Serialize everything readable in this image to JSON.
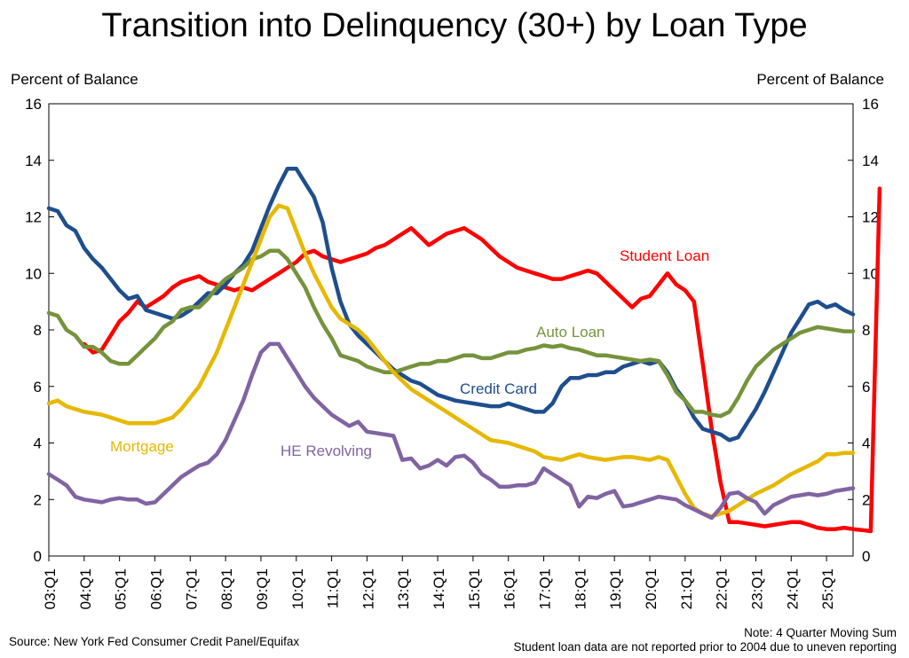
{
  "chart_data": {
    "type": "line",
    "title": "Transition into Delinquency (30+) by Loan Type",
    "ylabel_left": "Percent of Balance",
    "ylabel_right": "Percent of Balance",
    "ylim": [
      0,
      16
    ],
    "yticks": [
      0,
      2,
      4,
      6,
      8,
      10,
      12,
      14,
      16
    ],
    "x_start": "2003Q1",
    "x_ticks": [
      "03:Q1",
      "04:Q1",
      "05:Q1",
      "06:Q1",
      "07:Q1",
      "08:Q1",
      "09:Q1",
      "10:Q1",
      "11:Q1",
      "12:Q1",
      "13:Q1",
      "14:Q1",
      "15:Q1",
      "16:Q1",
      "17:Q1",
      "18:Q1",
      "19:Q1",
      "20:Q1",
      "21:Q1",
      "22:Q1",
      "23:Q1",
      "24:Q1",
      "25:Q1"
    ],
    "series": [
      {
        "name": "Student Loan",
        "color": "#ff0000",
        "start": "2004Q1",
        "values": [
          7.5,
          7.2,
          7.3,
          7.8,
          8.3,
          8.6,
          9.0,
          8.8,
          9.0,
          9.2,
          9.5,
          9.7,
          9.8,
          9.9,
          9.7,
          9.6,
          9.5,
          9.4,
          9.5,
          9.4,
          9.6,
          9.8,
          10.0,
          10.2,
          10.4,
          10.7,
          10.8,
          10.6,
          10.5,
          10.4,
          10.5,
          10.6,
          10.7,
          10.9,
          11.0,
          11.2,
          11.4,
          11.6,
          11.3,
          11.0,
          11.2,
          11.4,
          11.5,
          11.6,
          11.4,
          11.2,
          10.9,
          10.6,
          10.4,
          10.2,
          10.1,
          10.0,
          9.9,
          9.8,
          9.8,
          9.9,
          10.0,
          10.1,
          10.0,
          9.7,
          9.4,
          9.1,
          8.8,
          9.1,
          9.2,
          9.6,
          10.0,
          9.6,
          9.4,
          9.0,
          6.8,
          4.5,
          2.6,
          1.2,
          1.2,
          1.15,
          1.1,
          1.05,
          1.1,
          1.15,
          1.2,
          1.2,
          1.1,
          1.0,
          0.95,
          0.95,
          1.0,
          0.95,
          0.92,
          0.88,
          13.0
        ]
      },
      {
        "name": "Credit Card",
        "color": "#1f4e8c",
        "start": "2003Q1",
        "values": [
          12.3,
          12.2,
          11.7,
          11.5,
          10.9,
          10.5,
          10.2,
          9.8,
          9.4,
          9.1,
          9.2,
          8.7,
          8.6,
          8.5,
          8.4,
          8.5,
          8.7,
          9.0,
          9.3,
          9.3,
          9.6,
          10.0,
          10.3,
          10.8,
          11.6,
          12.4,
          13.1,
          13.7,
          13.7,
          13.2,
          12.7,
          11.8,
          10.2,
          9.0,
          8.2,
          7.8,
          7.5,
          7.2,
          6.9,
          6.6,
          6.4,
          6.2,
          6.1,
          5.9,
          5.7,
          5.6,
          5.5,
          5.45,
          5.4,
          5.35,
          5.3,
          5.3,
          5.4,
          5.3,
          5.2,
          5.1,
          5.1,
          5.4,
          6.0,
          6.3,
          6.3,
          6.4,
          6.4,
          6.5,
          6.5,
          6.7,
          6.8,
          6.9,
          6.8,
          6.9,
          6.5,
          5.9,
          5.5,
          4.9,
          4.5,
          4.4,
          4.3,
          4.1,
          4.2,
          4.7,
          5.2,
          5.8,
          6.5,
          7.2,
          7.9,
          8.4,
          8.9,
          9.0,
          8.8,
          8.9,
          8.7,
          8.55
        ]
      },
      {
        "name": "Auto Loan",
        "color": "#76933c",
        "start": "2003Q1",
        "values": [
          8.6,
          8.5,
          8.0,
          7.8,
          7.4,
          7.4,
          7.2,
          6.9,
          6.8,
          6.8,
          7.1,
          7.4,
          7.7,
          8.1,
          8.3,
          8.7,
          8.8,
          8.8,
          9.1,
          9.5,
          9.8,
          10.0,
          10.2,
          10.5,
          10.6,
          10.8,
          10.8,
          10.5,
          10.0,
          9.5,
          8.8,
          8.2,
          7.7,
          7.1,
          7.0,
          6.9,
          6.7,
          6.6,
          6.5,
          6.5,
          6.6,
          6.7,
          6.8,
          6.8,
          6.9,
          6.9,
          7.0,
          7.1,
          7.1,
          7.0,
          7.0,
          7.1,
          7.2,
          7.2,
          7.3,
          7.35,
          7.45,
          7.4,
          7.45,
          7.35,
          7.3,
          7.2,
          7.1,
          7.1,
          7.05,
          7.0,
          6.95,
          6.9,
          6.95,
          6.9,
          6.4,
          5.8,
          5.5,
          5.1,
          5.1,
          5.0,
          4.95,
          5.1,
          5.6,
          6.2,
          6.7,
          7.0,
          7.3,
          7.5,
          7.7,
          7.9,
          8.0,
          8.1,
          8.05,
          8.0,
          7.95,
          7.95
        ]
      },
      {
        "name": "Mortgage",
        "color": "#e6b800",
        "start": "2003Q1",
        "values": [
          5.4,
          5.5,
          5.3,
          5.2,
          5.1,
          5.05,
          5.0,
          4.9,
          4.8,
          4.7,
          4.7,
          4.7,
          4.7,
          4.8,
          4.9,
          5.2,
          5.6,
          6.0,
          6.6,
          7.2,
          8.0,
          8.8,
          9.6,
          10.4,
          11.2,
          12.0,
          12.4,
          12.3,
          11.5,
          10.7,
          10.0,
          9.4,
          8.8,
          8.4,
          8.2,
          8.0,
          7.7,
          7.3,
          6.9,
          6.5,
          6.2,
          5.9,
          5.7,
          5.5,
          5.3,
          5.1,
          4.9,
          4.7,
          4.5,
          4.3,
          4.1,
          4.05,
          4.0,
          3.9,
          3.8,
          3.7,
          3.5,
          3.45,
          3.4,
          3.5,
          3.6,
          3.5,
          3.45,
          3.4,
          3.45,
          3.5,
          3.5,
          3.45,
          3.4,
          3.5,
          3.4,
          2.8,
          2.2,
          1.7,
          1.5,
          1.4,
          1.5,
          1.6,
          1.8,
          2.0,
          2.2,
          2.35,
          2.5,
          2.7,
          2.9,
          3.05,
          3.2,
          3.35,
          3.6,
          3.6,
          3.65,
          3.65
        ]
      },
      {
        "name": "HE Revolving",
        "color": "#8064a2",
        "start": "2003Q1",
        "values": [
          2.9,
          2.7,
          2.5,
          2.1,
          2.0,
          1.95,
          1.9,
          2.0,
          2.05,
          2.0,
          2.0,
          1.85,
          1.9,
          2.2,
          2.5,
          2.8,
          3.0,
          3.2,
          3.3,
          3.6,
          4.1,
          4.8,
          5.5,
          6.4,
          7.2,
          7.5,
          7.5,
          7.0,
          6.5,
          6.0,
          5.6,
          5.3,
          5.0,
          4.8,
          4.6,
          4.75,
          4.4,
          4.35,
          4.3,
          4.25,
          3.4,
          3.45,
          3.1,
          3.2,
          3.4,
          3.2,
          3.5,
          3.55,
          3.3,
          2.9,
          2.7,
          2.45,
          2.45,
          2.5,
          2.5,
          2.6,
          3.1,
          2.9,
          2.7,
          2.5,
          1.75,
          2.1,
          2.05,
          2.2,
          2.3,
          1.75,
          1.8,
          1.9,
          2.0,
          2.1,
          2.05,
          2.0,
          1.8,
          1.65,
          1.5,
          1.35,
          1.7,
          2.2,
          2.25,
          2.05,
          1.9,
          1.5,
          1.8,
          1.95,
          2.1,
          2.15,
          2.2,
          2.15,
          2.2,
          2.3,
          2.35,
          2.4
        ]
      }
    ],
    "annotations": [
      {
        "text": "Student Loan",
        "series": "Student Loan"
      },
      {
        "text": "Auto Loan",
        "series": "Auto Loan"
      },
      {
        "text": "Credit Card",
        "series": "Credit Card"
      },
      {
        "text": "Mortgage",
        "series": "Mortgage"
      },
      {
        "text": "HE Revolving",
        "series": "HE Revolving"
      }
    ],
    "legend": "inline labels",
    "grid": false
  },
  "footer": {
    "source": "Source: New York Fed Consumer Credit Panel/Equifax",
    "note1": "Note: 4 Quarter Moving Sum",
    "note2": "Student loan data are not reported prior to 2004 due to uneven reporting"
  }
}
